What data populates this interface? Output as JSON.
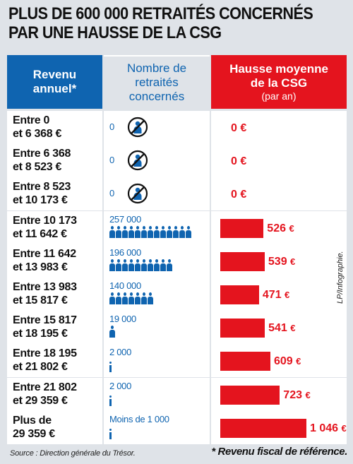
{
  "title": [
    "PLUS DE 600 000 RETRAITÉS CONCERNÉS",
    "PAR UNE HAUSSE DE LA CSG"
  ],
  "headers": {
    "col1": [
      "Revenu",
      "annuel*"
    ],
    "col2": [
      "Nombre de",
      "retraités",
      "concernés"
    ],
    "col3": [
      "Hausse moyenne",
      "de la CSG"
    ],
    "col3_sub": "(par an)"
  },
  "colors": {
    "blue": "#0f64b0",
    "red": "#e4141e"
  },
  "chart_data": {
    "type": "table",
    "unit": "€",
    "rows": [
      {
        "range": [
          "Entre 0",
          "et 6 368 €"
        ],
        "retirees_label": "0",
        "retirees": 0,
        "icon": "no-person-icon",
        "people_icons": 0,
        "thin_icons": 0,
        "increase_label": "0",
        "increase": 0
      },
      {
        "range": [
          "Entre 6 368",
          "et 8 523 €"
        ],
        "retirees_label": "0",
        "retirees": 0,
        "icon": "no-person-icon",
        "people_icons": 0,
        "thin_icons": 0,
        "increase_label": "0",
        "increase": 0
      },
      {
        "range": [
          "Entre 8 523",
          "et 10 173 €"
        ],
        "retirees_label": "0",
        "retirees": 0,
        "icon": "no-person-icon",
        "people_icons": 0,
        "thin_icons": 0,
        "increase_label": "0",
        "increase": 0
      },
      {
        "range": [
          "Entre 10 173",
          "et 11 642 €"
        ],
        "retirees_label": "257 000",
        "retirees": 257000,
        "people_icons": 13,
        "thin_icons": 0,
        "increase_label": "526",
        "increase": 526
      },
      {
        "range": [
          "Entre 11 642",
          "et 13 983 €"
        ],
        "retirees_label": "196 000",
        "retirees": 196000,
        "people_icons": 10,
        "thin_icons": 0,
        "increase_label": "539",
        "increase": 539
      },
      {
        "range": [
          "Entre 13 983",
          "et 15 817 €"
        ],
        "retirees_label": "140 000",
        "retirees": 140000,
        "people_icons": 7,
        "thin_icons": 0,
        "increase_label": "471",
        "increase": 471
      },
      {
        "range": [
          "Entre 15 817",
          "et 18 195 €"
        ],
        "retirees_label": "19 000",
        "retirees": 19000,
        "people_icons": 1,
        "thin_icons": 0,
        "increase_label": "541",
        "increase": 541
      },
      {
        "range": [
          "Entre 18 195",
          "et 21 802 €"
        ],
        "retirees_label": "2 000",
        "retirees": 2000,
        "people_icons": 0,
        "thin_icons": 1,
        "increase_label": "609",
        "increase": 609
      },
      {
        "range": [
          "Entre 21 802",
          "et 29 359 €"
        ],
        "retirees_label": "2 000",
        "retirees": 2000,
        "people_icons": 0,
        "thin_icons": 1,
        "increase_label": "723",
        "increase": 723
      },
      {
        "range": [
          "Plus de",
          "29 359 €"
        ],
        "retirees_label": "Moins de 1 000",
        "retirees": 1000,
        "people_icons": 0,
        "thin_icons": 1,
        "increase_label": "1 046",
        "increase": 1046
      }
    ]
  },
  "source": "Source : Direction générale du Trésor.",
  "note": "* Revenu fiscal de référence.",
  "credit": "LP/Infographie."
}
